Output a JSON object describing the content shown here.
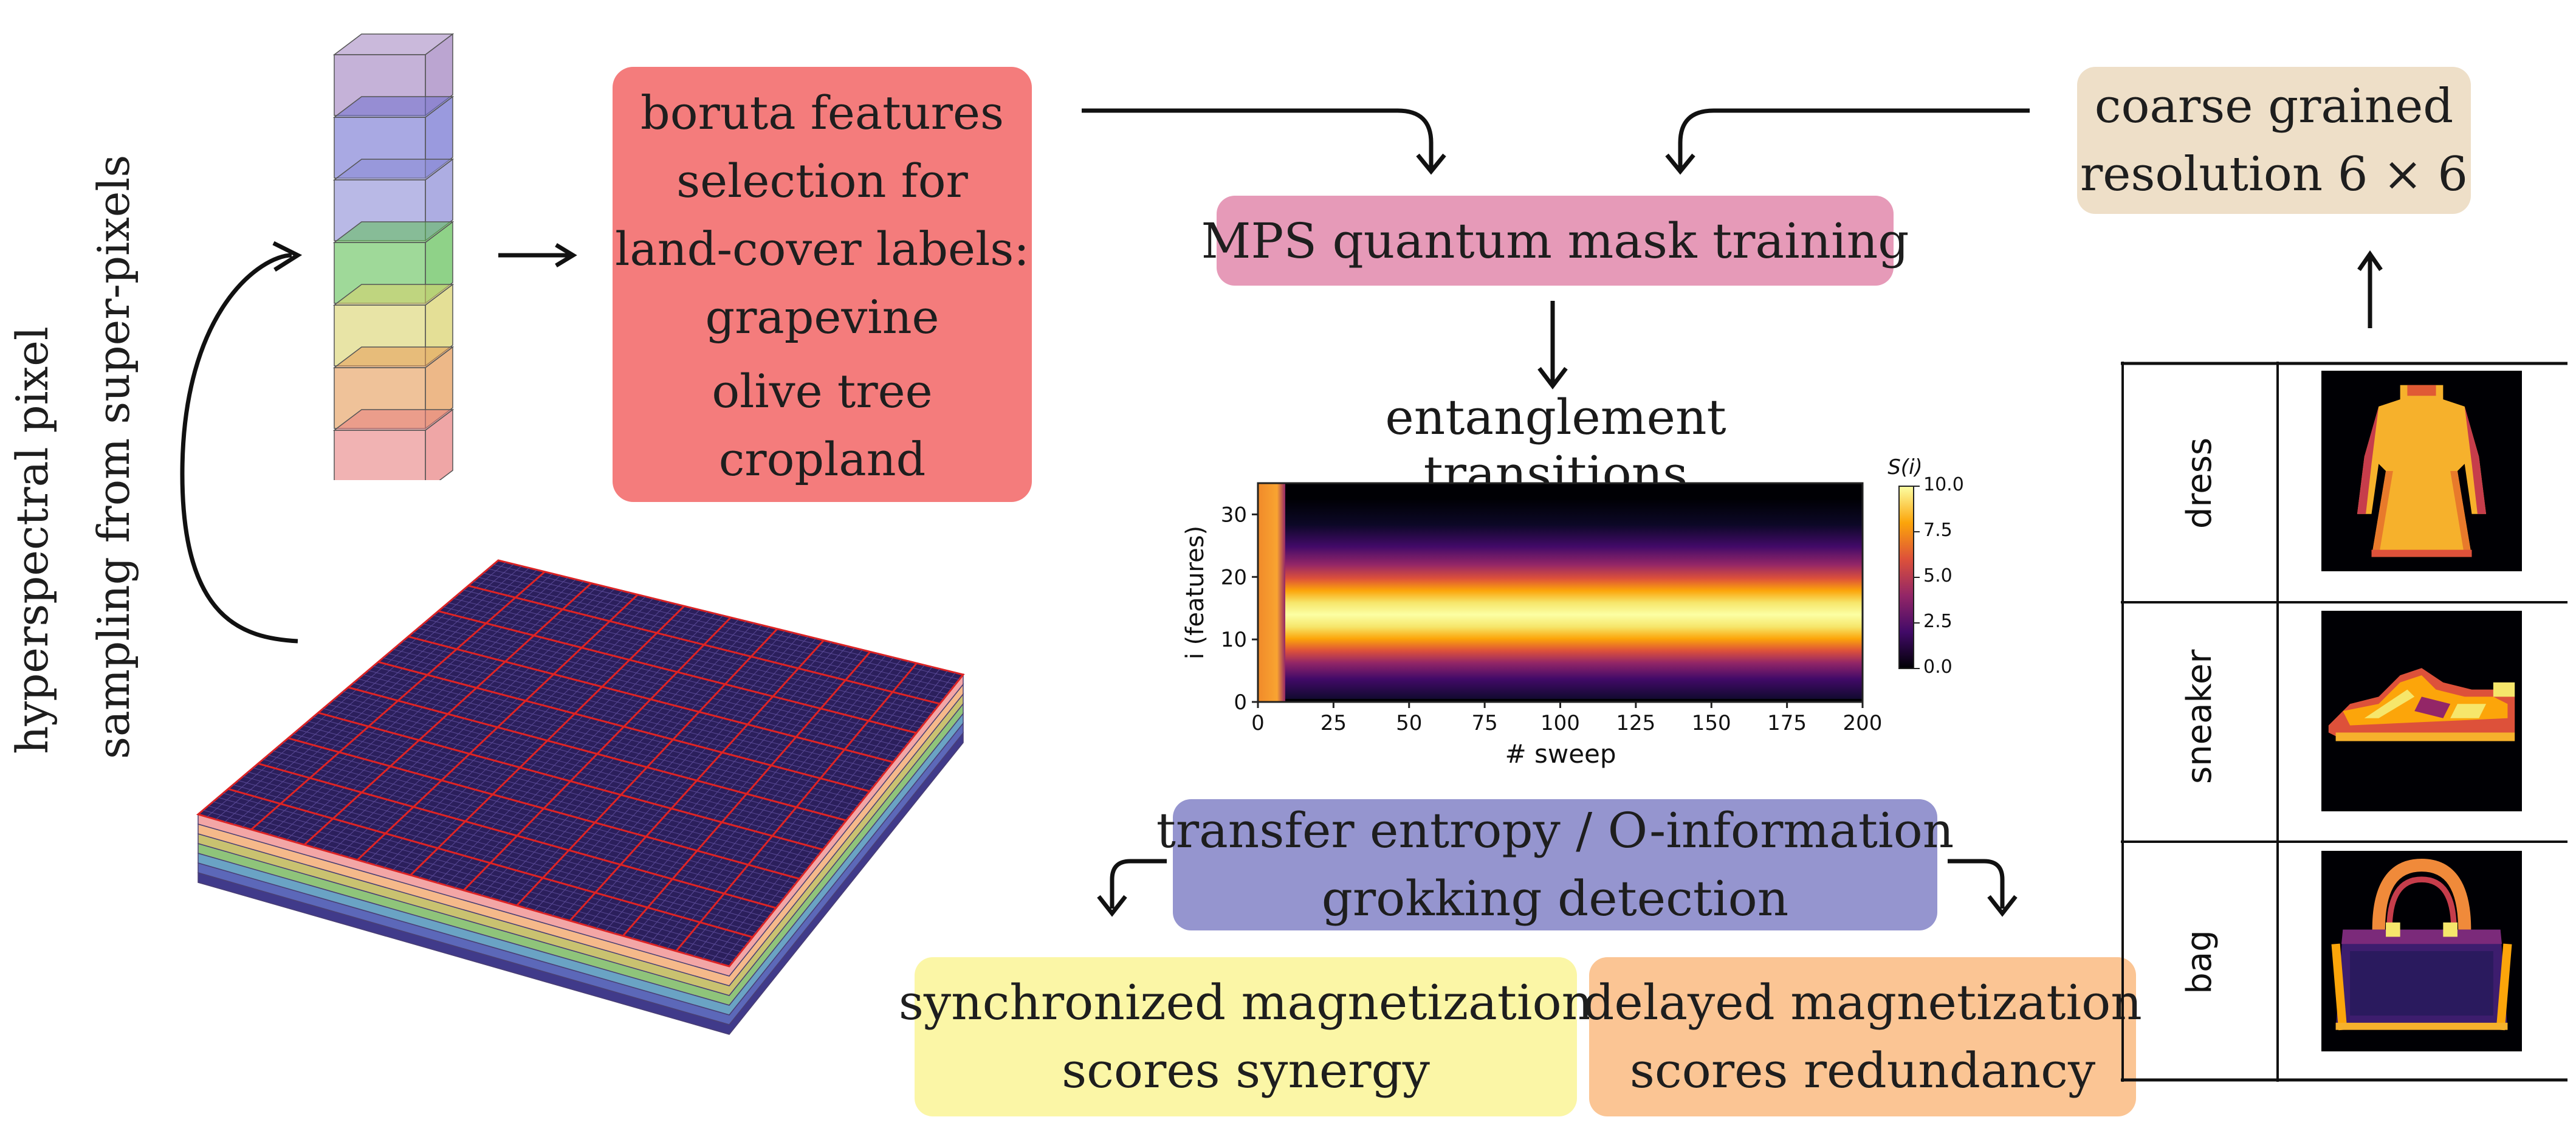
{
  "left_label": {
    "line1": "hyperspectral pixel",
    "line2": "sampling from super-pixels"
  },
  "boruta_box": {
    "lines": [
      "boruta features",
      "selection for",
      "land-cover labels:",
      "grapevine",
      "olive tree",
      "cropland"
    ],
    "color": "#f47c7c"
  },
  "mps_box": {
    "label": "MPS quantum mask training",
    "color": "#e69ab8"
  },
  "coarse_box": {
    "line1": "coarse grained",
    "line2": "resolution 6 × 6",
    "color": "#eedfc8"
  },
  "entanglement_title": "entanglement transitions",
  "heatmap": {
    "colorbar_label": "S(i)",
    "colorbar_ticks": [
      "10.0",
      "7.5",
      "5.0",
      "2.5",
      "0.0"
    ],
    "x_ticks": [
      "0",
      "25",
      "50",
      "75",
      "100",
      "125",
      "150",
      "175",
      "200"
    ],
    "y_ticks": [
      "30",
      "20",
      "10",
      "0"
    ],
    "xlabel": "# sweep",
    "ylabel": "i (features)",
    "colormap": [
      "#000004",
      "#420a68",
      "#932667",
      "#dd513a",
      "#fca50a",
      "#fcffa4"
    ]
  },
  "transfer_box": {
    "line1": "transfer entropy / O-information",
    "line2": "grokking detection",
    "color": "#9595cf"
  },
  "sync_box": {
    "line1": "synchronized magnetization",
    "line2": "scores synergy",
    "color": "#fbf6a6"
  },
  "delayed_box": {
    "line1": "delayed magnetization",
    "line2": "scores redundancy",
    "color": "#fbc594"
  },
  "image_table": {
    "rows": [
      {
        "label": "dress",
        "icon": "dress-icon"
      },
      {
        "label": "sneaker",
        "icon": "sneaker-icon"
      },
      {
        "label": "bag",
        "icon": "bag-icon"
      }
    ]
  },
  "spectral_cube_colors": [
    "#9e7fbe",
    "#6f6fd0",
    "#8a8ad6",
    "#5fbf55",
    "#d9d26a",
    "#e59a55",
    "#e88080"
  ]
}
